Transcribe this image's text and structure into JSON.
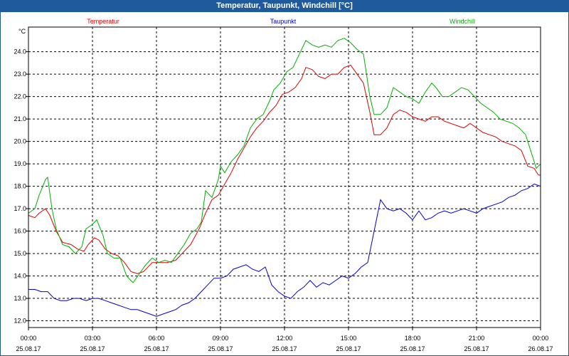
{
  "chart_data": {
    "type": "line",
    "title": "Temperatur, Taupunkt, Windchill [°C]",
    "ylabel": "°C",
    "ylim": [
      11.7,
      25.1
    ],
    "yticks": [
      12.0,
      13.0,
      14.0,
      15.0,
      16.0,
      17.0,
      18.0,
      19.0,
      20.0,
      21.0,
      22.0,
      23.0,
      24.0
    ],
    "xlim": [
      0,
      24
    ],
    "xticks": [
      {
        "t": 0,
        "time": "00:00",
        "date": "25.08.17"
      },
      {
        "t": 3,
        "time": "03:00",
        "date": "25.08.17"
      },
      {
        "t": 6,
        "time": "06:00",
        "date": "25.08.17"
      },
      {
        "t": 9,
        "time": "09:00",
        "date": "25.08.17"
      },
      {
        "t": 12,
        "time": "12:00",
        "date": "25.08.17"
      },
      {
        "t": 15,
        "time": "15:00",
        "date": "25.08.17"
      },
      {
        "t": 18,
        "time": "18:00",
        "date": "25.08.17"
      },
      {
        "t": 21,
        "time": "21:00",
        "date": "25.08.17"
      },
      {
        "t": 24,
        "time": "00:00",
        "date": "26.08.17"
      }
    ],
    "grid": true,
    "series": [
      {
        "name": "Temperatur",
        "color": "#e00000",
        "points": [
          [
            0,
            16.7
          ],
          [
            0.3,
            16.6
          ],
          [
            0.5,
            16.8
          ],
          [
            0.8,
            17.0
          ],
          [
            1.0,
            16.7
          ],
          [
            1.3,
            16.0
          ],
          [
            1.6,
            15.5
          ],
          [
            2.0,
            15.4
          ],
          [
            2.3,
            15.2
          ],
          [
            2.6,
            15.1
          ],
          [
            2.8,
            15.4
          ],
          [
            3.1,
            15.7
          ],
          [
            3.3,
            15.6
          ],
          [
            3.6,
            15.2
          ],
          [
            3.9,
            15.0
          ],
          [
            4.2,
            14.9
          ],
          [
            4.5,
            14.6
          ],
          [
            4.8,
            14.2
          ],
          [
            5.1,
            14.1
          ],
          [
            5.4,
            14.2
          ],
          [
            5.8,
            14.6
          ],
          [
            6.1,
            14.6
          ],
          [
            6.5,
            14.6
          ],
          [
            6.9,
            14.7
          ],
          [
            7.2,
            15.0
          ],
          [
            7.6,
            15.4
          ],
          [
            8.0,
            16.1
          ],
          [
            8.3,
            16.8
          ],
          [
            8.6,
            17.4
          ],
          [
            8.9,
            17.6
          ],
          [
            9.2,
            18.1
          ],
          [
            9.5,
            18.6
          ],
          [
            9.8,
            19.2
          ],
          [
            10.1,
            19.7
          ],
          [
            10.4,
            20.2
          ],
          [
            10.7,
            20.6
          ],
          [
            11.0,
            20.9
          ],
          [
            11.3,
            21.3
          ],
          [
            11.6,
            21.6
          ],
          [
            11.9,
            22.1
          ],
          [
            12.2,
            22.2
          ],
          [
            12.5,
            22.4
          ],
          [
            12.8,
            22.8
          ],
          [
            13.0,
            23.3
          ],
          [
            13.3,
            23.2
          ],
          [
            13.6,
            22.9
          ],
          [
            13.9,
            22.8
          ],
          [
            14.2,
            23.0
          ],
          [
            14.5,
            23.0
          ],
          [
            14.8,
            23.3
          ],
          [
            15.1,
            23.4
          ],
          [
            15.4,
            23.0
          ],
          [
            15.7,
            22.6
          ],
          [
            16.0,
            21.3
          ],
          [
            16.2,
            20.3
          ],
          [
            16.5,
            20.3
          ],
          [
            16.8,
            20.6
          ],
          [
            17.1,
            21.2
          ],
          [
            17.4,
            21.4
          ],
          [
            17.7,
            21.3
          ],
          [
            18.0,
            21.1
          ],
          [
            18.3,
            21.0
          ],
          [
            18.6,
            20.9
          ],
          [
            18.9,
            21.1
          ],
          [
            19.2,
            21.1
          ],
          [
            19.5,
            20.9
          ],
          [
            19.8,
            20.8
          ],
          [
            20.1,
            20.7
          ],
          [
            20.4,
            20.6
          ],
          [
            20.7,
            20.8
          ],
          [
            21.0,
            20.6
          ],
          [
            21.3,
            20.4
          ],
          [
            21.6,
            20.3
          ],
          [
            21.9,
            20.2
          ],
          [
            22.2,
            20.0
          ],
          [
            22.5,
            19.9
          ],
          [
            22.8,
            19.8
          ],
          [
            23.1,
            19.6
          ],
          [
            23.4,
            18.9
          ],
          [
            23.7,
            18.8
          ],
          [
            23.9,
            18.5
          ],
          [
            24.0,
            18.5
          ]
        ]
      },
      {
        "name": "Taupunkt",
        "color": "#0000d0",
        "points": [
          [
            0,
            13.4
          ],
          [
            0.3,
            13.4
          ],
          [
            0.6,
            13.3
          ],
          [
            0.9,
            13.3
          ],
          [
            1.2,
            13.0
          ],
          [
            1.5,
            12.9
          ],
          [
            1.8,
            12.9
          ],
          [
            2.1,
            13.0
          ],
          [
            2.4,
            13.0
          ],
          [
            2.7,
            12.9
          ],
          [
            3.0,
            13.0
          ],
          [
            3.3,
            13.0
          ],
          [
            3.6,
            12.9
          ],
          [
            3.9,
            12.8
          ],
          [
            4.2,
            12.7
          ],
          [
            4.5,
            12.6
          ],
          [
            4.8,
            12.5
          ],
          [
            5.1,
            12.5
          ],
          [
            5.4,
            12.4
          ],
          [
            5.7,
            12.3
          ],
          [
            6.0,
            12.2
          ],
          [
            6.3,
            12.3
          ],
          [
            6.6,
            12.4
          ],
          [
            6.9,
            12.5
          ],
          [
            7.2,
            12.7
          ],
          [
            7.5,
            12.8
          ],
          [
            7.8,
            13.0
          ],
          [
            8.1,
            13.3
          ],
          [
            8.4,
            13.6
          ],
          [
            8.7,
            13.9
          ],
          [
            9.0,
            13.9
          ],
          [
            9.3,
            14.0
          ],
          [
            9.6,
            14.3
          ],
          [
            9.9,
            14.4
          ],
          [
            10.2,
            14.5
          ],
          [
            10.5,
            14.3
          ],
          [
            10.8,
            14.2
          ],
          [
            11.1,
            14.4
          ],
          [
            11.4,
            13.6
          ],
          [
            11.7,
            13.3
          ],
          [
            12.0,
            13.1
          ],
          [
            12.3,
            13.0
          ],
          [
            12.6,
            13.3
          ],
          [
            12.9,
            13.5
          ],
          [
            13.2,
            13.8
          ],
          [
            13.5,
            13.5
          ],
          [
            13.8,
            13.7
          ],
          [
            14.1,
            13.6
          ],
          [
            14.4,
            13.8
          ],
          [
            14.7,
            14.0
          ],
          [
            15.0,
            13.9
          ],
          [
            15.3,
            14.1
          ],
          [
            15.6,
            14.4
          ],
          [
            15.9,
            14.6
          ],
          [
            16.2,
            16.0
          ],
          [
            16.5,
            17.4
          ],
          [
            16.8,
            17.0
          ],
          [
            17.1,
            16.9
          ],
          [
            17.4,
            17.0
          ],
          [
            17.7,
            16.8
          ],
          [
            18.0,
            16.5
          ],
          [
            18.3,
            16.9
          ],
          [
            18.6,
            16.5
          ],
          [
            18.9,
            16.6
          ],
          [
            19.2,
            16.8
          ],
          [
            19.5,
            16.9
          ],
          [
            19.8,
            16.8
          ],
          [
            20.1,
            16.9
          ],
          [
            20.4,
            17.0
          ],
          [
            20.7,
            16.9
          ],
          [
            21.0,
            16.8
          ],
          [
            21.3,
            17.0
          ],
          [
            21.6,
            17.1
          ],
          [
            21.9,
            17.2
          ],
          [
            22.2,
            17.3
          ],
          [
            22.5,
            17.5
          ],
          [
            22.8,
            17.6
          ],
          [
            23.1,
            17.8
          ],
          [
            23.4,
            17.9
          ],
          [
            23.7,
            18.1
          ],
          [
            24.0,
            18.0
          ]
        ]
      },
      {
        "name": "Windchill",
        "color": "#00b000",
        "points": [
          [
            0,
            16.8
          ],
          [
            0.3,
            17.0
          ],
          [
            0.5,
            17.6
          ],
          [
            0.8,
            18.3
          ],
          [
            0.9,
            18.4
          ],
          [
            1.1,
            17.0
          ],
          [
            1.3,
            16.1
          ],
          [
            1.6,
            15.4
          ],
          [
            1.9,
            15.3
          ],
          [
            2.2,
            15.0
          ],
          [
            2.5,
            15.3
          ],
          [
            2.7,
            16.1
          ],
          [
            3.0,
            16.3
          ],
          [
            3.2,
            16.5
          ],
          [
            3.5,
            15.8
          ],
          [
            3.7,
            15.0
          ],
          [
            4.0,
            14.8
          ],
          [
            4.3,
            14.8
          ],
          [
            4.6,
            14.0
          ],
          [
            4.9,
            13.7
          ],
          [
            5.2,
            14.1
          ],
          [
            5.5,
            14.5
          ],
          [
            5.8,
            14.8
          ],
          [
            6.1,
            14.6
          ],
          [
            6.4,
            14.7
          ],
          [
            6.7,
            14.6
          ],
          [
            7.0,
            15.0
          ],
          [
            7.3,
            15.4
          ],
          [
            7.6,
            15.9
          ],
          [
            7.9,
            16.1
          ],
          [
            8.1,
            16.4
          ],
          [
            8.3,
            17.8
          ],
          [
            8.6,
            17.5
          ],
          [
            8.9,
            18.3
          ],
          [
            9.0,
            18.9
          ],
          [
            9.2,
            18.6
          ],
          [
            9.5,
            19.1
          ],
          [
            9.8,
            19.4
          ],
          [
            10.1,
            19.8
          ],
          [
            10.4,
            20.6
          ],
          [
            10.7,
            21.0
          ],
          [
            11.0,
            21.2
          ],
          [
            11.3,
            21.8
          ],
          [
            11.5,
            22.3
          ],
          [
            11.8,
            22.6
          ],
          [
            12.1,
            23.1
          ],
          [
            12.4,
            23.3
          ],
          [
            12.7,
            23.9
          ],
          [
            13.0,
            24.5
          ],
          [
            13.3,
            24.3
          ],
          [
            13.6,
            24.2
          ],
          [
            13.9,
            24.3
          ],
          [
            14.2,
            24.2
          ],
          [
            14.5,
            24.5
          ],
          [
            14.8,
            24.6
          ],
          [
            15.1,
            24.4
          ],
          [
            15.4,
            24.1
          ],
          [
            15.7,
            23.9
          ],
          [
            16.0,
            22.0
          ],
          [
            16.2,
            21.2
          ],
          [
            16.5,
            21.2
          ],
          [
            16.8,
            21.5
          ],
          [
            17.1,
            22.4
          ],
          [
            17.4,
            22.2
          ],
          [
            17.7,
            22.0
          ],
          [
            18.0,
            21.9
          ],
          [
            18.3,
            21.7
          ],
          [
            18.6,
            22.2
          ],
          [
            18.9,
            22.6
          ],
          [
            19.1,
            22.4
          ],
          [
            19.4,
            22.0
          ],
          [
            19.7,
            22.0
          ],
          [
            20.0,
            22.2
          ],
          [
            20.3,
            22.4
          ],
          [
            20.6,
            22.3
          ],
          [
            20.9,
            22.0
          ],
          [
            21.2,
            21.7
          ],
          [
            21.5,
            21.5
          ],
          [
            21.8,
            21.3
          ],
          [
            22.1,
            21.0
          ],
          [
            22.4,
            20.9
          ],
          [
            22.7,
            20.8
          ],
          [
            23.0,
            20.6
          ],
          [
            23.3,
            20.3
          ],
          [
            23.6,
            19.4
          ],
          [
            23.8,
            18.8
          ],
          [
            24.0,
            19.0
          ]
        ]
      }
    ]
  }
}
